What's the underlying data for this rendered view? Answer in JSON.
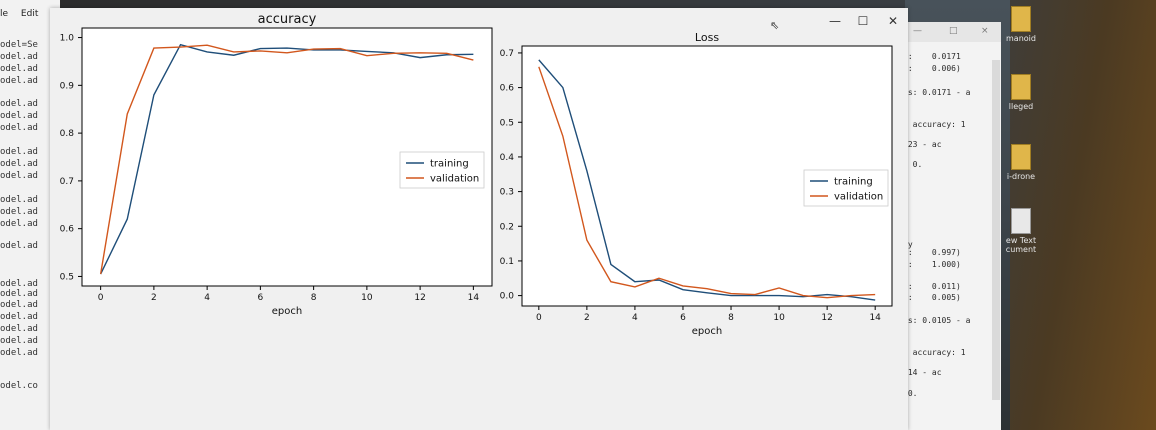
{
  "terminal_left": {
    "menu": [
      "le",
      "Edit"
    ],
    "lines": [
      "odel=Se",
      "odel.ad",
      "odel.ad",
      "odel.ad",
      "odel.ad",
      "odel.ad",
      "odel.ad",
      "odel.ad",
      "odel.ad",
      "odel.ad",
      "odel.ad",
      "odel.ad",
      "odel.ad",
      "odel.ad",
      "odel.ad",
      "odel.ad",
      "odel.ad",
      "odel.ad",
      "odel.ad",
      "odel.ad",
      "odel.ad",
      "odel.co"
    ]
  },
  "terminal_right": {
    "controls": [
      "—",
      "□",
      "×"
    ],
    "lines": [
      "r:    0.0171",
      "r:    0.006)",
      "ss: 0.0171 - a",
      "- accuracy: 1",
      "023 - ac",
      ": 0.",
      "cy",
      "r:    0.997)",
      "r:    1.000)",
      "r:    0.011)",
      "r:    0.005)",
      "ss: 0.0105 - a",
      "- accuracy: 1",
      "014 - ac",
      " 0."
    ]
  },
  "desktop_icons": [
    "manoid",
    "lleged",
    "i-drone",
    "ew Text\ncument"
  ],
  "window": {
    "controls": {
      "minimize": "—",
      "maximize": "☐",
      "close": "✕"
    },
    "cursor": "⇖"
  },
  "colors": {
    "training": "#1f4e79",
    "validation": "#d2571d"
  },
  "chart_data": [
    {
      "type": "line",
      "title": "accuracy",
      "xlabel": "epoch",
      "ylabel": "",
      "xlim": [
        -0.7,
        14.7
      ],
      "ylim": [
        0.48,
        1.02
      ],
      "xticks": [
        0,
        2,
        4,
        6,
        8,
        10,
        12,
        14
      ],
      "yticks": [
        0.5,
        0.6,
        0.7,
        0.8,
        0.9,
        1.0
      ],
      "legend": "center-right",
      "x": [
        0,
        1,
        2,
        3,
        4,
        5,
        6,
        7,
        8,
        9,
        10,
        11,
        12,
        13,
        14
      ],
      "series": [
        {
          "name": "training",
          "values": [
            0.505,
            0.62,
            0.88,
            0.985,
            0.97,
            0.963,
            0.977,
            0.978,
            0.974,
            0.974,
            0.971,
            0.968,
            0.958,
            0.964,
            0.965
          ]
        },
        {
          "name": "validation",
          "values": [
            0.505,
            0.84,
            0.978,
            0.98,
            0.984,
            0.97,
            0.972,
            0.968,
            0.976,
            0.977,
            0.962,
            0.967,
            0.968,
            0.967,
            0.953
          ]
        }
      ]
    },
    {
      "type": "line",
      "title": "Loss",
      "xlabel": "epoch",
      "ylabel": "",
      "xlim": [
        -0.7,
        14.7
      ],
      "ylim": [
        -0.03,
        0.72
      ],
      "xticks": [
        0,
        2,
        4,
        6,
        8,
        10,
        12,
        14
      ],
      "yticks": [
        0.0,
        0.1,
        0.2,
        0.3,
        0.4,
        0.5,
        0.6,
        0.7
      ],
      "legend": "center-right",
      "x": [
        0,
        1,
        2,
        3,
        4,
        5,
        6,
        7,
        8,
        9,
        10,
        11,
        12,
        13,
        14
      ],
      "series": [
        {
          "name": "training",
          "values": [
            0.68,
            0.6,
            0.36,
            0.09,
            0.04,
            0.045,
            0.017,
            0.008,
            0.0,
            0.0,
            0.0,
            -0.003,
            0.003,
            -0.003,
            -0.013
          ]
        },
        {
          "name": "validation",
          "values": [
            0.66,
            0.46,
            0.16,
            0.04,
            0.025,
            0.05,
            0.028,
            0.02,
            0.006,
            0.003,
            0.022,
            0.0,
            -0.006,
            0.0,
            0.003
          ]
        }
      ]
    }
  ]
}
